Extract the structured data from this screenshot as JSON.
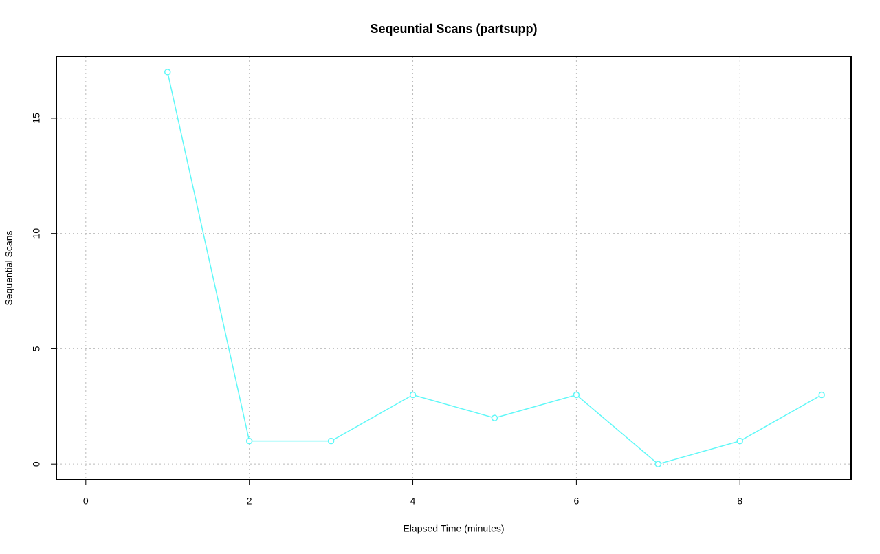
{
  "chart_data": {
    "type": "line",
    "title": "Seqeuntial Scans (partsupp)",
    "x_label": "Elapsed Time (minutes)",
    "y_label": "Sequential Scans",
    "series": [
      {
        "name": "partsupp",
        "color": "#5ff8f8",
        "x": [
          1,
          2,
          3,
          4,
          5,
          6,
          7,
          8,
          9
        ],
        "values": [
          17,
          1,
          1,
          3,
          2,
          3,
          0,
          1,
          3
        ]
      }
    ],
    "xlim": [
      -0.36,
      9.36
    ],
    "ylim": [
      -0.68,
      17.68
    ],
    "xticks": [
      0,
      2,
      4,
      6,
      8
    ],
    "yticks": [
      0,
      5,
      10,
      15
    ],
    "grid": true
  }
}
